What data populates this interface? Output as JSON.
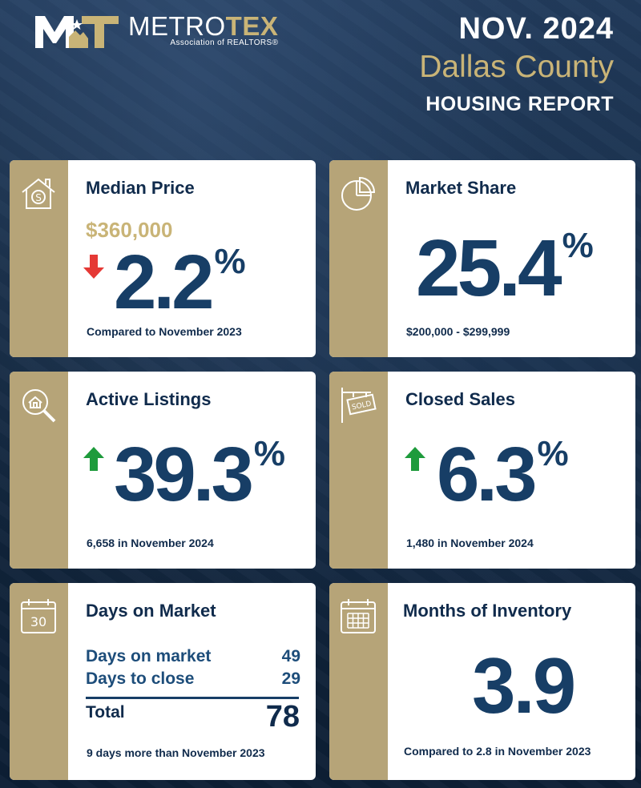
{
  "header": {
    "logo_name_part1": "METRO",
    "logo_name_part2": "TEX",
    "logo_sub": "Association of REALTORS®",
    "date": "NOV. 2024",
    "county": "Dallas County",
    "report": "HOUSING REPORT"
  },
  "colors": {
    "navy": "#173e66",
    "gold": "#c9b477",
    "strip": "#b6a478",
    "down": "#e53935",
    "up": "#1e9b3c"
  },
  "cards": {
    "median_price": {
      "icon": "house-dollar-icon",
      "title": "Median Price",
      "price": "$360,000",
      "direction": "down",
      "value": "2.2",
      "unit": "%",
      "footer": "Compared to November 2023"
    },
    "market_share": {
      "icon": "pie-chart-icon",
      "title": "Market Share",
      "value": "25.4",
      "unit": "%",
      "footer": "$200,000 - $299,999"
    },
    "active_listings": {
      "icon": "house-magnifier-icon",
      "title": "Active Listings",
      "direction": "up",
      "value": "39.3",
      "unit": "%",
      "footer": "6,658 in November 2024"
    },
    "closed_sales": {
      "icon": "sold-sign-icon",
      "title": "Closed Sales",
      "direction": "up",
      "value": "6.3",
      "unit": "%",
      "footer": "1,480 in November 2024"
    },
    "days_on_market": {
      "icon": "calendar-30-icon",
      "icon_text": "30",
      "title": "Days on Market",
      "rows": [
        {
          "label": "Days on market",
          "value": "49"
        },
        {
          "label": "Days to close",
          "value": "29"
        }
      ],
      "total_label": "Total",
      "total_value": "78",
      "footer": "9 days more than November 2023"
    },
    "months_inventory": {
      "icon": "calendar-grid-icon",
      "title": "Months of Inventory",
      "value": "3.9",
      "footer": "Compared to 2.8 in November 2023"
    }
  }
}
